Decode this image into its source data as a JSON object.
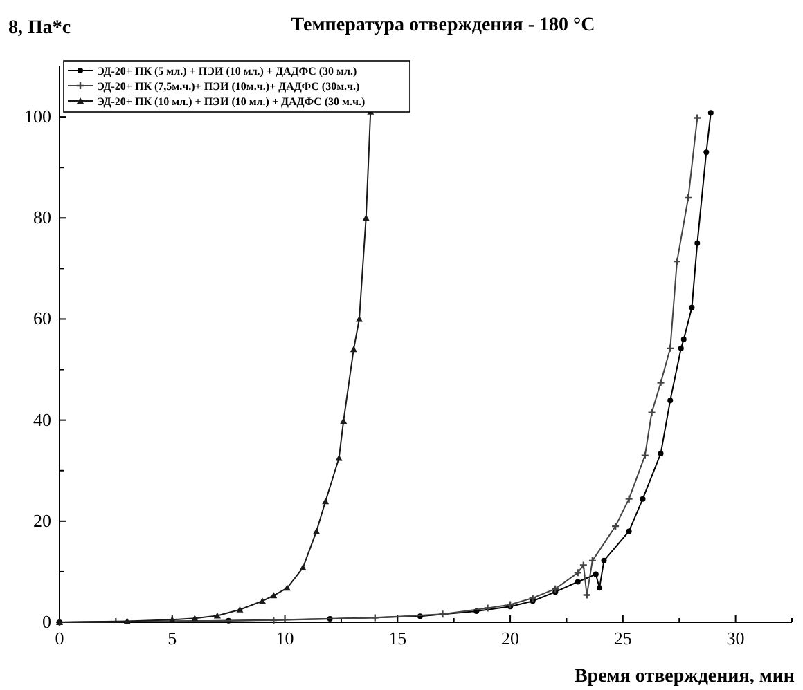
{
  "chart_data": {
    "type": "line",
    "title": "Температура отверждения - 180 °C",
    "xlabel": "Время отверждения, мин",
    "ylabel": "8, Па*с",
    "xlim": [
      0,
      32.5
    ],
    "ylim": [
      0,
      110
    ],
    "xticks": [
      0,
      {
        "value": 2.5,
        "label": null
      },
      5,
      {
        "value": 7.5,
        "label": null
      },
      10,
      {
        "value": 12.5,
        "label": null
      },
      15,
      {
        "value": 17.5,
        "label": null
      },
      20,
      {
        "value": 22.5,
        "label": null
      },
      25,
      {
        "value": 27.5,
        "label": null
      },
      30,
      {
        "value": 32.5,
        "label": null
      }
    ],
    "yticks": [
      0,
      {
        "value": 10,
        "label": null
      },
      20,
      {
        "value": 30,
        "label": null
      },
      40,
      {
        "value": 50,
        "label": null
      },
      60,
      {
        "value": 70,
        "label": null
      },
      80,
      {
        "value": 90,
        "label": null
      },
      100
    ],
    "grid": false,
    "legend": "top left",
    "line_style": "solid",
    "series": [
      {
        "name": "ЭД-20+ ПК (5 мл.) + ПЭИ (10 мл.) + ДАДФС (30 мл.)",
        "color": "#000000",
        "marker": "circle",
        "x": [
          0,
          7.5,
          12,
          16,
          18.5,
          20,
          21,
          22,
          23,
          23.8,
          23.96,
          24.16,
          25.27,
          25.88,
          26.68,
          27.1,
          27.58,
          27.7,
          28.06,
          28.3,
          28.7,
          28.9
        ],
        "values": [
          0,
          0.3,
          0.7,
          1.2,
          2.2,
          3.1,
          4.2,
          6,
          8,
          9.5,
          6.8,
          12.2,
          18,
          24.4,
          33.4,
          43.9,
          54.2,
          56,
          62.3,
          75,
          93,
          100.8
        ]
      },
      {
        "name": "ЭД-20+ ПК (7,5м.ч.)+ ПЭИ (10м.ч.)+ ДАДФС (30м.ч.)",
        "color": "#444444",
        "marker": "cross",
        "x": [
          0,
          9.5,
          14,
          17,
          19,
          20,
          21,
          22,
          23,
          23.25,
          23.4,
          23.65,
          24.67,
          25.27,
          25.98,
          26.28,
          26.68,
          27.1,
          27.4,
          27.9,
          28.3
        ],
        "values": [
          0,
          0.4,
          0.9,
          1.6,
          2.8,
          3.5,
          4.8,
          6.6,
          9.8,
          11.3,
          5.4,
          12.2,
          19,
          24.4,
          33,
          41.5,
          47.4,
          54.2,
          71.4,
          84,
          99.8
        ]
      },
      {
        "name": "ЭД-20+ ПК (10 мл.) + ПЭИ (10 мл.) + ДАДФС (30 м.ч.)",
        "color": "#1a1a1a",
        "marker": "triangle",
        "x": [
          0,
          3,
          5,
          6,
          7,
          8,
          9,
          9.5,
          10.1,
          10.8,
          11.4,
          11.8,
          12.4,
          12.6,
          13.05,
          13.3,
          13.6,
          13.8
        ],
        "values": [
          0,
          0.2,
          0.5,
          0.8,
          1.3,
          2.5,
          4.2,
          5.3,
          6.8,
          10.8,
          18,
          23.9,
          32.5,
          39.8,
          54,
          60,
          80,
          101
        ]
      }
    ]
  }
}
